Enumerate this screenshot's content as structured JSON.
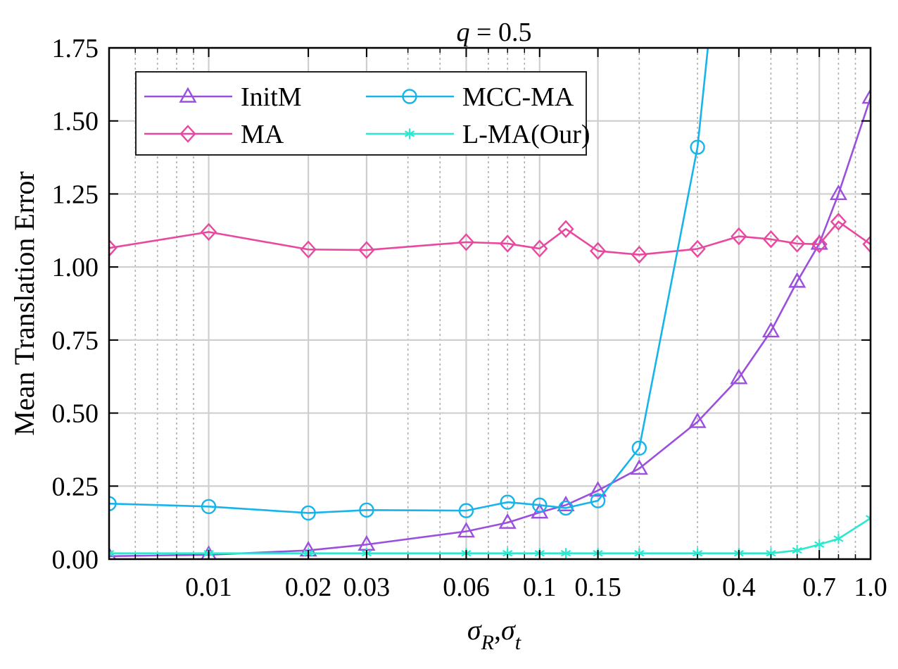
{
  "chart_data": {
    "type": "line",
    "title": "q = 0.5",
    "title_parts": {
      "var": "q",
      "rest": " = 0.5"
    },
    "xlabel": "σR,σt",
    "xlabel_parts": {
      "sym1": "σ",
      "sub1": "R",
      "comma": ",",
      "sym2": "σ",
      "sub2": "t"
    },
    "ylabel": "Mean Translation Error",
    "xscale": "log",
    "xlim": [
      0.005,
      1.0
    ],
    "ylim": [
      0,
      1.75
    ],
    "grid": true,
    "x_ticks": [
      {
        "value": 0.01,
        "label": "0.01"
      },
      {
        "value": 0.02,
        "label": "0.02"
      },
      {
        "value": 0.03,
        "label": "0.03"
      },
      {
        "value": 0.06,
        "label": "0.06"
      },
      {
        "value": 0.1,
        "label": "0.1"
      },
      {
        "value": 0.15,
        "label": "0.15"
      },
      {
        "value": 0.4,
        "label": "0.4"
      },
      {
        "value": 0.7,
        "label": "0.7"
      },
      {
        "value": 1.0,
        "label": "1.0"
      }
    ],
    "y_ticks": [
      {
        "value": 0.0,
        "label": "0.00"
      },
      {
        "value": 0.25,
        "label": "0.25"
      },
      {
        "value": 0.5,
        "label": "0.50"
      },
      {
        "value": 0.75,
        "label": "0.75"
      },
      {
        "value": 1.0,
        "label": "1.00"
      },
      {
        "value": 1.25,
        "label": "1.25"
      },
      {
        "value": 1.5,
        "label": "1.50"
      },
      {
        "value": 1.75,
        "label": "1.75"
      }
    ],
    "x": [
      0.005,
      0.01,
      0.02,
      0.03,
      0.06,
      0.08,
      0.1,
      0.12,
      0.15,
      0.2,
      0.3,
      0.4,
      0.5,
      0.6,
      0.7,
      0.8,
      1.0
    ],
    "legend_placement": "top-left",
    "series": [
      {
        "name": "InitM",
        "color": "#9b4fdd",
        "marker": "triangle",
        "values": [
          0.01,
          0.015,
          0.03,
          0.05,
          0.095,
          0.125,
          0.16,
          0.185,
          0.235,
          0.31,
          0.47,
          0.62,
          0.78,
          0.95,
          1.08,
          1.25,
          1.58
        ]
      },
      {
        "name": "MA",
        "color": "#e8489f",
        "marker": "diamond",
        "values": [
          1.065,
          1.12,
          1.06,
          1.058,
          1.085,
          1.08,
          1.063,
          1.13,
          1.055,
          1.042,
          1.062,
          1.105,
          1.095,
          1.08,
          1.078,
          1.155,
          1.078
        ]
      },
      {
        "name": "MCC-MA",
        "color": "#16b4ea",
        "marker": "circle",
        "values": [
          0.19,
          0.18,
          0.158,
          0.168,
          0.166,
          0.195,
          0.185,
          0.175,
          0.2,
          0.38,
          1.41,
          null,
          null,
          null,
          null,
          null,
          null
        ],
        "extends_above_ylim": true
      },
      {
        "name": "L-MA(Our)",
        "color": "#2ce8cf",
        "marker": "star",
        "values": [
          0.02,
          0.02,
          0.02,
          0.02,
          0.02,
          0.02,
          0.02,
          0.02,
          0.02,
          0.02,
          0.02,
          0.02,
          0.02,
          0.03,
          0.05,
          0.07,
          0.14
        ]
      }
    ]
  }
}
